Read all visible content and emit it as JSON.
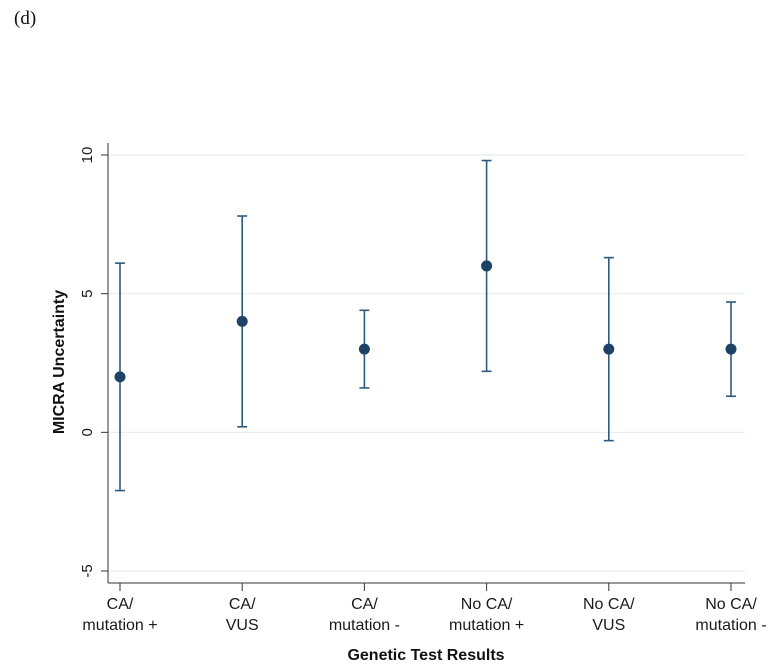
{
  "panel_label": "(d)",
  "colors": {
    "marker": "#1d4266",
    "errorbar": "#2e5a7f",
    "gridline": "#e6ecf1",
    "axis": "#333333"
  },
  "chart_data": {
    "type": "scatter",
    "subtype": "point-with-error-bars",
    "title": "",
    "xlabel": "Genetic Test Results",
    "ylabel": "MICRA Uncertainty",
    "ylim": [
      -5.5,
      10.5
    ],
    "yticks": [
      -5,
      0,
      5,
      10
    ],
    "ytick_labels": [
      "-5",
      "0",
      "5",
      "10"
    ],
    "grid": "horizontal",
    "categories": [
      [
        "CA/",
        "mutation +"
      ],
      [
        "CA/",
        "VUS"
      ],
      [
        "CA/",
        "mutation -"
      ],
      [
        "No CA/",
        "mutation +"
      ],
      [
        "No CA/",
        "VUS"
      ],
      [
        "No CA/",
        "mutation -"
      ]
    ],
    "series": [
      {
        "values": [
          2.0,
          4.0,
          3.0,
          6.0,
          3.0,
          3.0
        ],
        "lower": [
          -2.1,
          0.2,
          1.6,
          2.2,
          -0.3,
          1.3
        ],
        "upper": [
          6.1,
          7.8,
          4.4,
          9.8,
          6.3,
          4.7
        ]
      }
    ]
  }
}
